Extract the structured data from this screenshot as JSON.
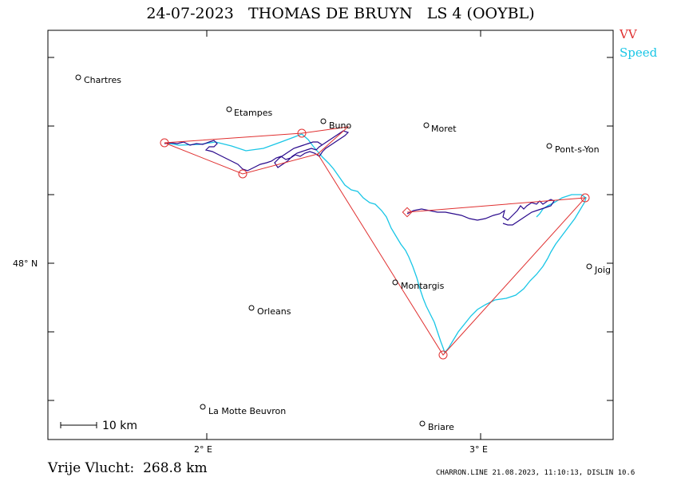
{
  "header": {
    "title": "24-07-2023   THOMAS DE BRUYN   LS 4 (OOYBL)"
  },
  "legend": {
    "vv_label": "VV",
    "speed_label": "Speed",
    "vv_color": "#e03030",
    "speed_color": "#19c6e6",
    "track_color": "#2a0a8c"
  },
  "footer": {
    "distance": "Vrije Vlucht:  268.8 km",
    "credit": "CHARRON.LINE 21.08.2023, 11:10:13, DISLIN 10.6"
  },
  "axes": {
    "lat_label": "48° N",
    "lon_labels": [
      "2° E",
      "3° E"
    ]
  },
  "scale_bar": {
    "label": "10 km"
  },
  "places": [
    {
      "name": "Chartres"
    },
    {
      "name": "Etampes"
    },
    {
      "name": "Buno"
    },
    {
      "name": "Moret"
    },
    {
      "name": "Pont-s-Yon"
    },
    {
      "name": "Joig"
    },
    {
      "name": "Montargis"
    },
    {
      "name": "Orleans"
    },
    {
      "name": "La Motte Beuvron"
    },
    {
      "name": "Briare"
    }
  ],
  "turnpoints": {
    "count": 6
  }
}
